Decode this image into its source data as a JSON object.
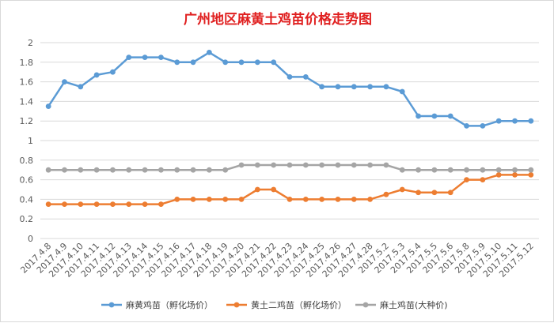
{
  "chart_data": {
    "type": "line",
    "title": "广州地区麻黄土鸡苗价格走势图",
    "xlabel": "",
    "ylabel": "",
    "ylim": [
      0,
      2
    ],
    "yticks": [
      "0",
      "0.2",
      "0.4",
      "0.6",
      "0.8",
      "1",
      "1.2",
      "1.4",
      "1.6",
      "1.8",
      "2"
    ],
    "grid": "horizontal",
    "legend_position": "bottom",
    "categories": [
      "2017.4.8",
      "2017.4.9",
      "2017.4.10",
      "2017.4.11",
      "2017.4.12",
      "2017.4.13",
      "2017.4.14",
      "2017.4.15",
      "2017.4.16",
      "2017.4.17",
      "2017.4.18",
      "2017.4.19",
      "2017.4.20",
      "2017.4.21",
      "2017.4.22",
      "2017.4.23",
      "2017.4.24",
      "2017.4.25",
      "2017.4.26",
      "2017.4.27",
      "2017.4.28",
      "2017.5.2",
      "2017.5.3",
      "2017.5.4",
      "2017.5.5",
      "2017.5.6",
      "2017.5.8",
      "2017.5.9",
      "2017.5.10",
      "2017.5.11",
      "2017.5.12"
    ],
    "series": [
      {
        "name": "麻黄鸡苗（孵化场价）",
        "color": "#5b9bd5",
        "values": [
          1.35,
          1.6,
          1.55,
          1.67,
          1.7,
          1.85,
          1.85,
          1.85,
          1.8,
          1.8,
          1.9,
          1.8,
          1.8,
          1.8,
          1.8,
          1.65,
          1.65,
          1.55,
          1.55,
          1.55,
          1.55,
          1.55,
          1.5,
          1.25,
          1.25,
          1.25,
          1.15,
          1.15,
          1.2,
          1.2,
          1.2
        ]
      },
      {
        "name": "黄土二鸡苗（孵化场价）",
        "color": "#ed7d31",
        "values": [
          0.35,
          0.35,
          0.35,
          0.35,
          0.35,
          0.35,
          0.35,
          0.35,
          0.4,
          0.4,
          0.4,
          0.4,
          0.4,
          0.5,
          0.5,
          0.4,
          0.4,
          0.4,
          0.4,
          0.4,
          0.4,
          0.45,
          0.5,
          0.47,
          0.47,
          0.47,
          0.6,
          0.6,
          0.65,
          0.65,
          0.65
        ]
      },
      {
        "name": "麻土鸡苗(大种价)",
        "color": "#a5a5a5",
        "values": [
          0.7,
          0.7,
          0.7,
          0.7,
          0.7,
          0.7,
          0.7,
          0.7,
          0.7,
          0.7,
          0.7,
          0.7,
          0.75,
          0.75,
          0.75,
          0.75,
          0.75,
          0.75,
          0.75,
          0.75,
          0.75,
          0.75,
          0.7,
          0.7,
          0.7,
          0.7,
          0.7,
          0.7,
          0.7,
          0.7,
          0.7
        ]
      }
    ]
  }
}
